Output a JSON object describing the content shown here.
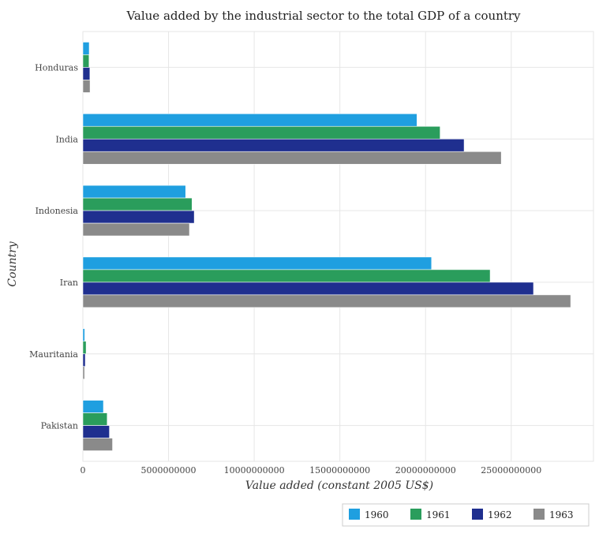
{
  "chart_data": {
    "type": "bar",
    "orientation": "horizontal",
    "title": "Value added by the industrial sector to the total GDP of a country",
    "xlabel": "Value added (constant 2005 US$)",
    "ylabel": "Country",
    "categories": [
      "Honduras",
      "India",
      "Indonesia",
      "Iran",
      "Mauritania",
      "Pakistan"
    ],
    "xlim": [
      0,
      29800000000
    ],
    "xticks": [
      0,
      5000000000,
      10000000000,
      15000000000,
      20000000000,
      25000000000
    ],
    "xtick_labels": [
      "0",
      "5000000000",
      "10000000000",
      "15000000000",
      "20000000000",
      "25000000000"
    ],
    "grid": true,
    "legend_position": "bottom-right",
    "series": [
      {
        "name": "1960",
        "color": "#1f9fe0",
        "values": [
          370000000,
          19500000000,
          6000000000,
          20350000000,
          110000000,
          1200000000
        ]
      },
      {
        "name": "1961",
        "color": "#2a9d5c",
        "values": [
          360000000,
          20850000000,
          6370000000,
          23770000000,
          190000000,
          1420000000
        ]
      },
      {
        "name": "1962",
        "color": "#1f2f8f",
        "values": [
          410000000,
          22250000000,
          6500000000,
          26300000000,
          140000000,
          1550000000
        ]
      },
      {
        "name": "1963",
        "color": "#8a8a8a",
        "values": [
          420000000,
          24420000000,
          6220000000,
          28470000000,
          100000000,
          1730000000
        ]
      }
    ]
  }
}
